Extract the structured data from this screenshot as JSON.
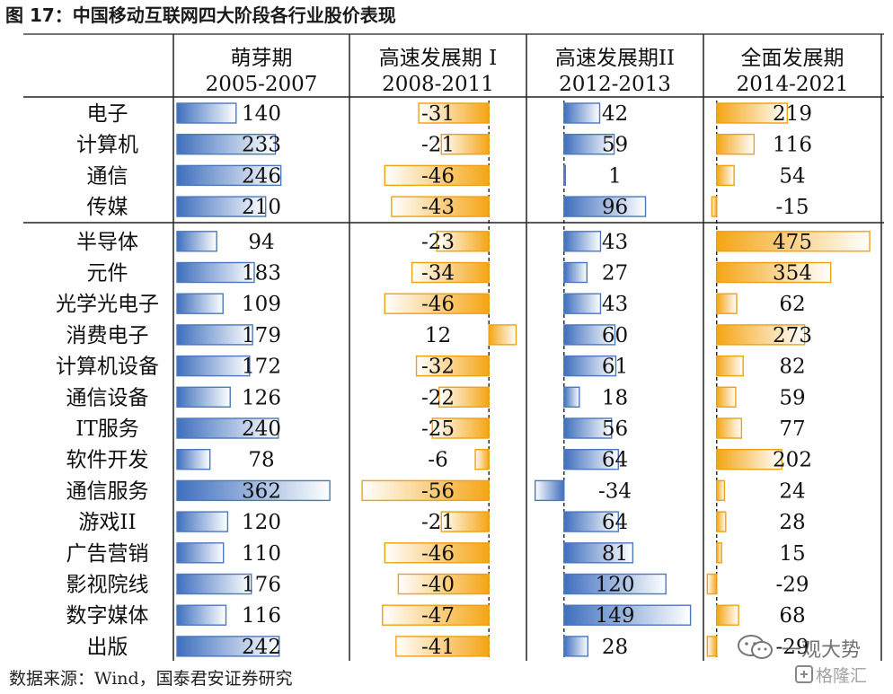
{
  "title": "图 17：中国移动互联网四大阶段各行业股价表现",
  "footnote": "数据来源：Wind，国泰君安证券研究",
  "watermark": {
    "line1": "一观大势",
    "line2": "格隆汇"
  },
  "chart_data": {
    "type": "bar",
    "orientation": "horizontal",
    "categories": [
      "电子",
      "计算机",
      "通信",
      "传媒",
      "半导体",
      "元件",
      "光学光电子",
      "消费电子",
      "计算机设备",
      "通信设备",
      "IT服务",
      "软件开发",
      "通信服务",
      "游戏II",
      "广告营销",
      "影视院线",
      "数字媒体",
      "出版"
    ],
    "group_split_after": 4,
    "panels": [
      {
        "name": "萌芽期",
        "period": "2005-2007",
        "color": "#4a78c0",
        "xlim": [
          0,
          400
        ],
        "values": [
          140,
          233,
          246,
          210,
          94,
          183,
          109,
          179,
          172,
          126,
          240,
          78,
          362,
          120,
          110,
          176,
          116,
          242
        ]
      },
      {
        "name": "高速发展期 I",
        "period": "2008-2011",
        "color": "#f4a91c",
        "xlim": [
          -60,
          15
        ],
        "values": [
          -31,
          -21,
          -46,
          -43,
          -23,
          -34,
          -46,
          12,
          -32,
          -22,
          -25,
          -6,
          -56,
          -21,
          -46,
          -40,
          -47,
          -41
        ]
      },
      {
        "name": "高速发展期II",
        "period": "2012-2013",
        "color": "#4a78c0",
        "xlim": [
          -40,
          160
        ],
        "values": [
          42,
          59,
          1,
          96,
          43,
          27,
          43,
          60,
          61,
          18,
          56,
          64,
          -34,
          64,
          81,
          120,
          149,
          28
        ]
      },
      {
        "name": "全面发展期",
        "period": "2014-2021",
        "color": "#f4a91c",
        "xlim": [
          -30,
          500
        ],
        "values": [
          219,
          116,
          54,
          -15,
          475,
          354,
          62,
          273,
          82,
          59,
          77,
          202,
          24,
          28,
          15,
          -29,
          68,
          -29
        ]
      }
    ]
  }
}
